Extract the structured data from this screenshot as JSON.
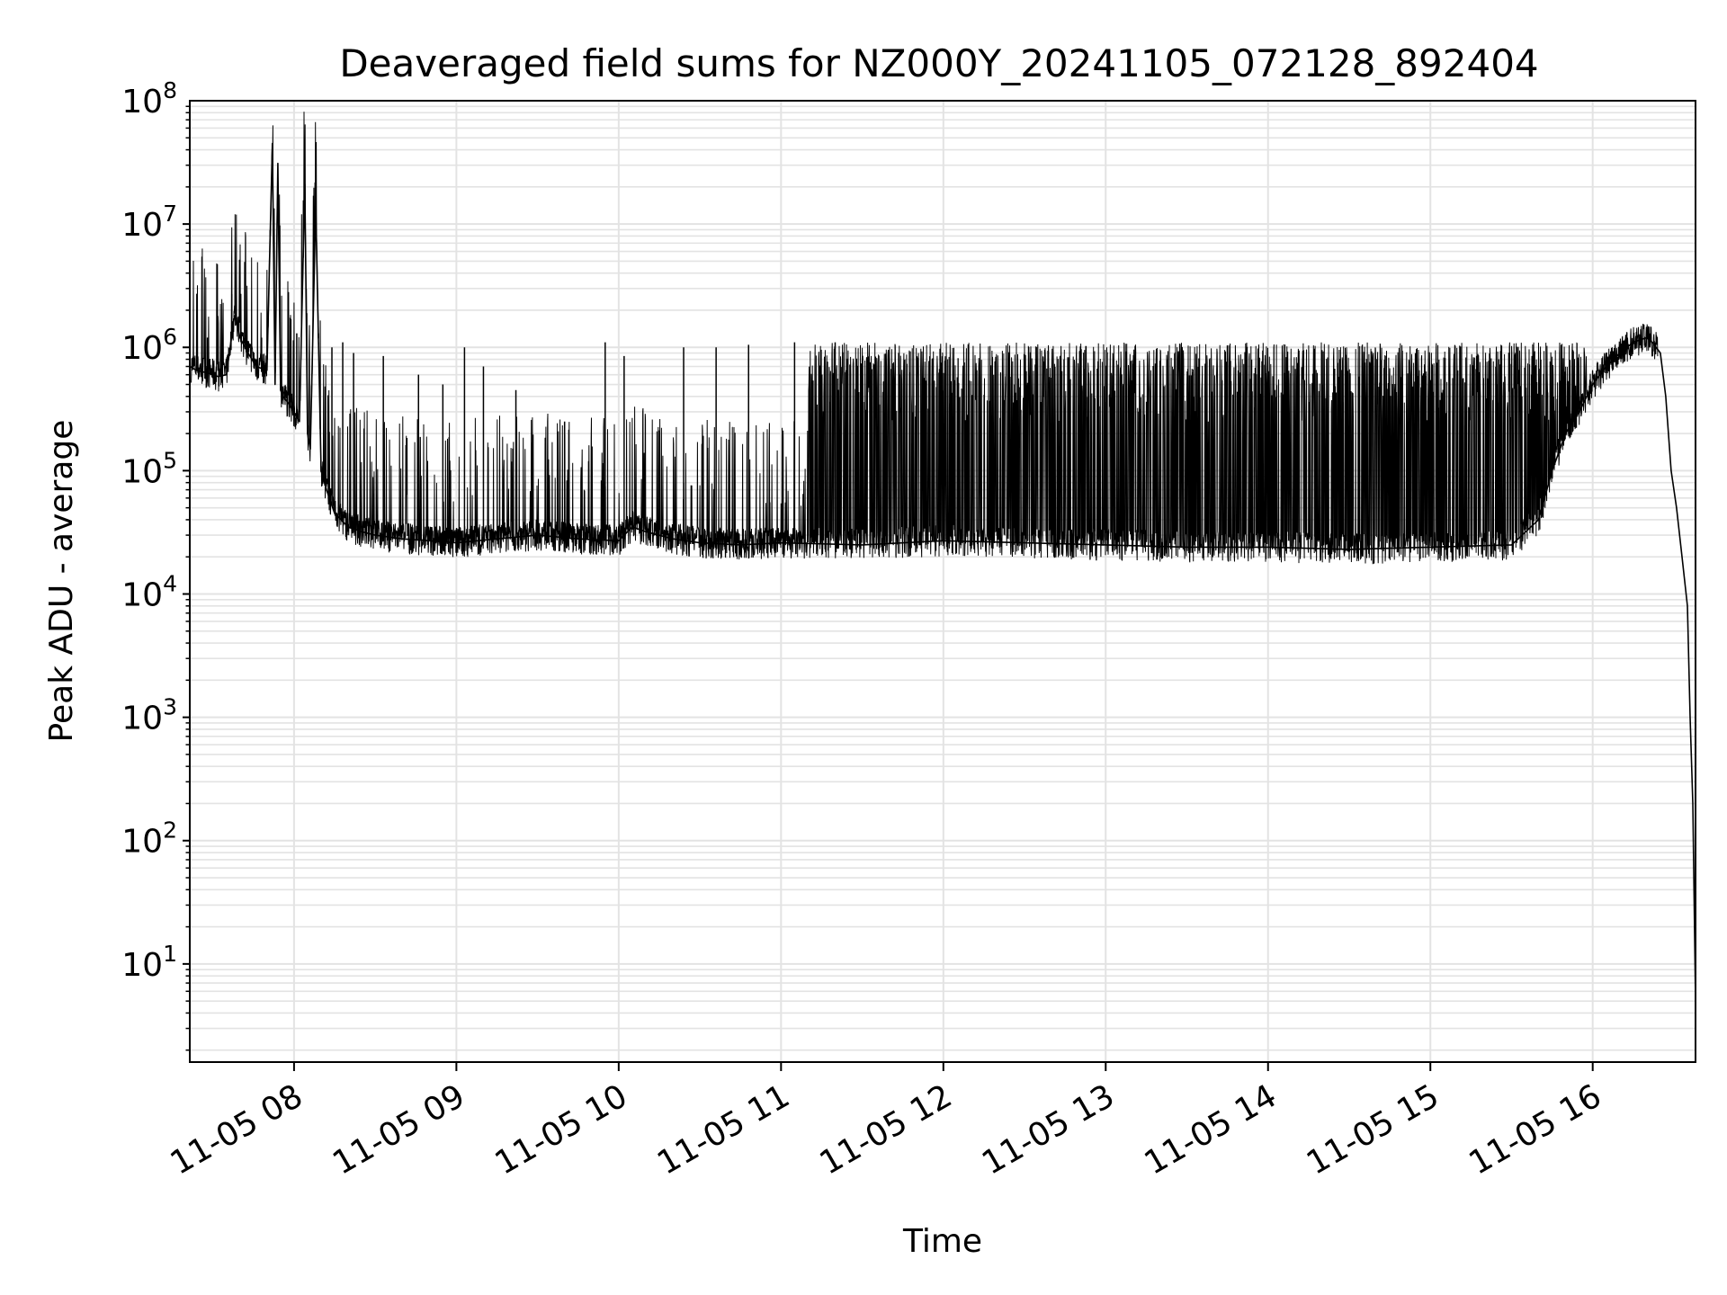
{
  "chart_data": {
    "type": "line",
    "title": "Deaveraged field sums for NZ000Y_20241105_072128_892404",
    "xlabel": "Time",
    "ylabel": "Peak ADU - average",
    "yscale": "log",
    "ylim": [
      1.6,
      100000000
    ],
    "xlim": [
      "2024-11-05 07:21:28",
      "2024-11-05 16:38:00"
    ],
    "grid": true,
    "line_color": "#000000",
    "grid_color": "#e3e3e3",
    "x_ticks": [
      {
        "t": "2024-11-05 08:00",
        "label": "11-05 08"
      },
      {
        "t": "2024-11-05 09:00",
        "label": "11-05 09"
      },
      {
        "t": "2024-11-05 10:00",
        "label": "11-05 10"
      },
      {
        "t": "2024-11-05 11:00",
        "label": "11-05 11"
      },
      {
        "t": "2024-11-05 12:00",
        "label": "11-05 12"
      },
      {
        "t": "2024-11-05 13:00",
        "label": "11-05 13"
      },
      {
        "t": "2024-11-05 14:00",
        "label": "11-05 14"
      },
      {
        "t": "2024-11-05 15:00",
        "label": "11-05 15"
      },
      {
        "t": "2024-11-05 16:00",
        "label": "11-05 16"
      }
    ],
    "y_ticks": [
      {
        "value": 10,
        "base": "10",
        "exp": "1"
      },
      {
        "value": 100,
        "base": "10",
        "exp": "2"
      },
      {
        "value": 1000,
        "base": "10",
        "exp": "3"
      },
      {
        "value": 10000,
        "base": "10",
        "exp": "4"
      },
      {
        "value": 100000,
        "base": "10",
        "exp": "5"
      },
      {
        "value": 1000000,
        "base": "10",
        "exp": "6"
      },
      {
        "value": 10000000,
        "base": "10",
        "exp": "7"
      },
      {
        "value": 100000000,
        "base": "10",
        "exp": "8"
      }
    ],
    "series": [
      {
        "x": [
          "2024-11-05 07:21:28",
          "2024-11-05 07:24",
          "2024-11-05 07:28",
          "2024-11-05 07:32",
          "2024-11-05 07:35",
          "2024-11-05 07:38",
          "2024-11-05 07:39",
          "2024-11-05 07:40",
          "2024-11-05 07:43",
          "2024-11-05 07:46",
          "2024-11-05 07:50",
          "2024-11-05 07:52",
          "2024-11-05 07:53",
          "2024-11-05 07:54",
          "2024-11-05 07:55",
          "2024-11-05 07:56",
          "2024-11-05 07:58",
          "2024-11-05 08:02",
          "2024-11-05 08:04",
          "2024-11-05 08:05",
          "2024-11-05 08:06",
          "2024-11-05 08:08",
          "2024-11-05 08:10",
          "2024-11-05 08:12",
          "2024-11-05 08:15",
          "2024-11-05 08:20",
          "2024-11-05 08:25",
          "2024-11-05 08:30",
          "2024-11-05 08:40",
          "2024-11-05 08:50",
          "2024-11-05 09:00",
          "2024-11-05 09:15",
          "2024-11-05 09:30",
          "2024-11-05 09:45",
          "2024-11-05 10:00",
          "2024-11-05 10:05",
          "2024-11-05 10:10",
          "2024-11-05 10:20",
          "2024-11-05 10:30",
          "2024-11-05 10:45",
          "2024-11-05 11:00",
          "2024-11-05 11:30",
          "2024-11-05 12:00",
          "2024-11-05 12:30",
          "2024-11-05 13:00",
          "2024-11-05 13:30",
          "2024-11-05 14:00",
          "2024-11-05 14:30",
          "2024-11-05 15:00",
          "2024-11-05 15:30",
          "2024-11-05 15:40",
          "2024-11-05 15:45",
          "2024-11-05 15:50",
          "2024-11-05 15:55",
          "2024-11-05 16:00",
          "2024-11-05 16:05",
          "2024-11-05 16:10",
          "2024-11-05 16:15",
          "2024-11-05 16:20",
          "2024-11-05 16:22",
          "2024-11-05 16:25",
          "2024-11-05 16:27",
          "2024-11-05 16:29",
          "2024-11-05 16:31",
          "2024-11-05 16:33",
          "2024-11-05 16:35",
          "2024-11-05 16:36",
          "2024-11-05 16:37",
          "2024-11-05 16:38"
        ],
        "y": [
          700000,
          650000,
          620000,
          580000,
          600000,
          1800000,
          1500000,
          1200000,
          900000,
          700000,
          650000,
          45000000,
          500000,
          31000000,
          450000,
          400000,
          350000,
          250000,
          21000000,
          200000,
          150000,
          14000000,
          100000,
          70000,
          45000,
          35000,
          32000,
          30000,
          28000,
          27000,
          26000,
          28000,
          30000,
          28000,
          27000,
          35000,
          32000,
          28000,
          26000,
          25000,
          26000,
          25000,
          27000,
          26000,
          25000,
          24000,
          24000,
          23000,
          24000,
          25000,
          40000,
          100000,
          200000,
          300000,
          500000,
          700000,
          900000,
          1100000,
          1200000,
          1100000,
          900000,
          400000,
          100000,
          50000,
          20000,
          8000,
          1000,
          200,
          5
        ]
      }
    ],
    "spikes": [
      {
        "t": "2024-11-05 07:28",
        "y": 1200000
      },
      {
        "t": "2024-11-05 07:37",
        "y": 2700000
      },
      {
        "t": "2024-11-05 07:44",
        "y": 1000000
      },
      {
        "t": "2024-11-05 07:48",
        "y": 1200000
      },
      {
        "t": "2024-11-05 08:01",
        "y": 1300000
      },
      {
        "t": "2024-11-05 08:09",
        "y": 1300000
      },
      {
        "t": "2024-11-05 08:14",
        "y": 1000000
      },
      {
        "t": "2024-11-05 08:18",
        "y": 1100000
      },
      {
        "t": "2024-11-05 08:22",
        "y": 900000
      },
      {
        "t": "2024-11-05 08:33",
        "y": 850000
      },
      {
        "t": "2024-11-05 08:46",
        "y": 600000
      },
      {
        "t": "2024-11-05 08:55",
        "y": 500000
      },
      {
        "t": "2024-11-05 09:03",
        "y": 1000000
      },
      {
        "t": "2024-11-05 09:10",
        "y": 700000
      },
      {
        "t": "2024-11-05 09:22",
        "y": 450000
      },
      {
        "t": "2024-11-05 09:40",
        "y": 250000
      },
      {
        "t": "2024-11-05 09:55",
        "y": 1100000
      },
      {
        "t": "2024-11-05 10:02",
        "y": 850000
      },
      {
        "t": "2024-11-05 10:24",
        "y": 1000000
      },
      {
        "t": "2024-11-05 10:36",
        "y": 1000000
      },
      {
        "t": "2024-11-05 10:48",
        "y": 1050000
      },
      {
        "t": "2024-11-05 11:05",
        "y": 1100000
      },
      {
        "t": "2024-11-05 11:20",
        "y": 1100000
      }
    ]
  }
}
